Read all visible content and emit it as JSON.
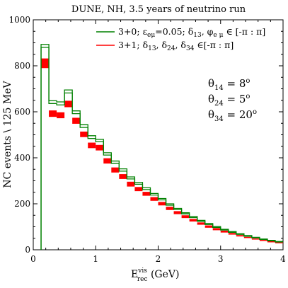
{
  "chart_data": {
    "type": "histogram",
    "title": "DUNE, NH, 3.5 years of neutrino run",
    "xlabel_main": "E",
    "xlabel_sup": "vis",
    "xlabel_sub": "rec",
    "xlabel_unit": " (GeV)",
    "ylabel": "NC  events \\ 125 MeV",
    "xlim": [
      0,
      4
    ],
    "ylim": [
      0,
      1000
    ],
    "xticks": [
      0,
      1,
      2,
      3,
      4
    ],
    "yticks": [
      0,
      200,
      400,
      600,
      800,
      1000
    ],
    "bin_width": 0.125,
    "bin_edges": [
      0.125,
      0.25,
      0.375,
      0.5,
      0.625,
      0.75,
      0.875,
      1.0,
      1.125,
      1.25,
      1.375,
      1.5,
      1.625,
      1.75,
      1.875,
      2.0,
      2.125,
      2.25,
      2.375,
      2.5,
      2.625,
      2.75,
      2.875,
      3.0,
      3.125,
      3.25,
      3.375,
      3.5,
      3.625,
      3.75,
      3.875,
      4.0
    ],
    "series": [
      {
        "name": "3+0; ε_eμ=0.05; δ13, φ_eμ ∈ [-π : π]",
        "color": "#008000",
        "style": "step-envelope",
        "lower": [
          880,
          636,
          630,
          682,
          592,
          532,
          484,
          470,
          412,
          376,
          342,
          308,
          285,
          262,
          238,
          217,
          194,
          175,
          156,
          140,
          124,
          110,
          97,
          86,
          76,
          67,
          59,
          52,
          45,
          39,
          34
        ],
        "upper": [
          893,
          648,
          643,
          695,
          604,
          544,
          496,
          480,
          422,
          386,
          352,
          317,
          293,
          270,
          245,
          223,
          200,
          180,
          161,
          145,
          128,
          114,
          101,
          89,
          79,
          70,
          62,
          54,
          47,
          41,
          36
        ]
      },
      {
        "name": "3+1; δ13, δ24, δ34 ∈ [-π : π]",
        "color": "#ff0000",
        "style": "band",
        "lower": [
          790,
          578,
          572,
          620,
          548,
          490,
          442,
          432,
          375,
          336,
          308,
          275,
          255,
          235,
          213,
          193,
          173,
          155,
          138,
          123,
          109,
          96,
          85,
          75,
          66,
          58,
          51,
          45,
          39,
          34,
          30
        ],
        "upper": [
          832,
          606,
          598,
          648,
          574,
          514,
          466,
          456,
          398,
          358,
          329,
          296,
          273,
          252,
          229,
          208,
          187,
          168,
          150,
          134,
          119,
          106,
          94,
          83,
          73,
          64,
          56,
          49,
          43,
          37,
          33
        ]
      }
    ],
    "legend_position": "top-right",
    "annotations": [
      {
        "lhs": "θ",
        "sub": "14",
        "rhs": " = 8",
        "sup": "o"
      },
      {
        "lhs": "θ",
        "sub": "24",
        "rhs": " = 5",
        "sup": "o"
      },
      {
        "lhs": "θ",
        "sub": "34",
        "rhs": " = 20",
        "sup": "o"
      }
    ]
  },
  "legend": {
    "item1": {
      "main": "3+0; ε",
      "sub1": "eμ",
      "mid1": "=0.05; δ",
      "sub2": "13",
      "mid2": ", φ",
      "sub3": "e μ",
      "tail": " ∈ [-π : π]"
    },
    "item2": {
      "main": "3+1; δ",
      "sub1": "13",
      "mid1": ", δ",
      "sub2": "24",
      "mid2": ", δ",
      "sub3": "34",
      "tail": " ∈[-π : π]"
    }
  }
}
